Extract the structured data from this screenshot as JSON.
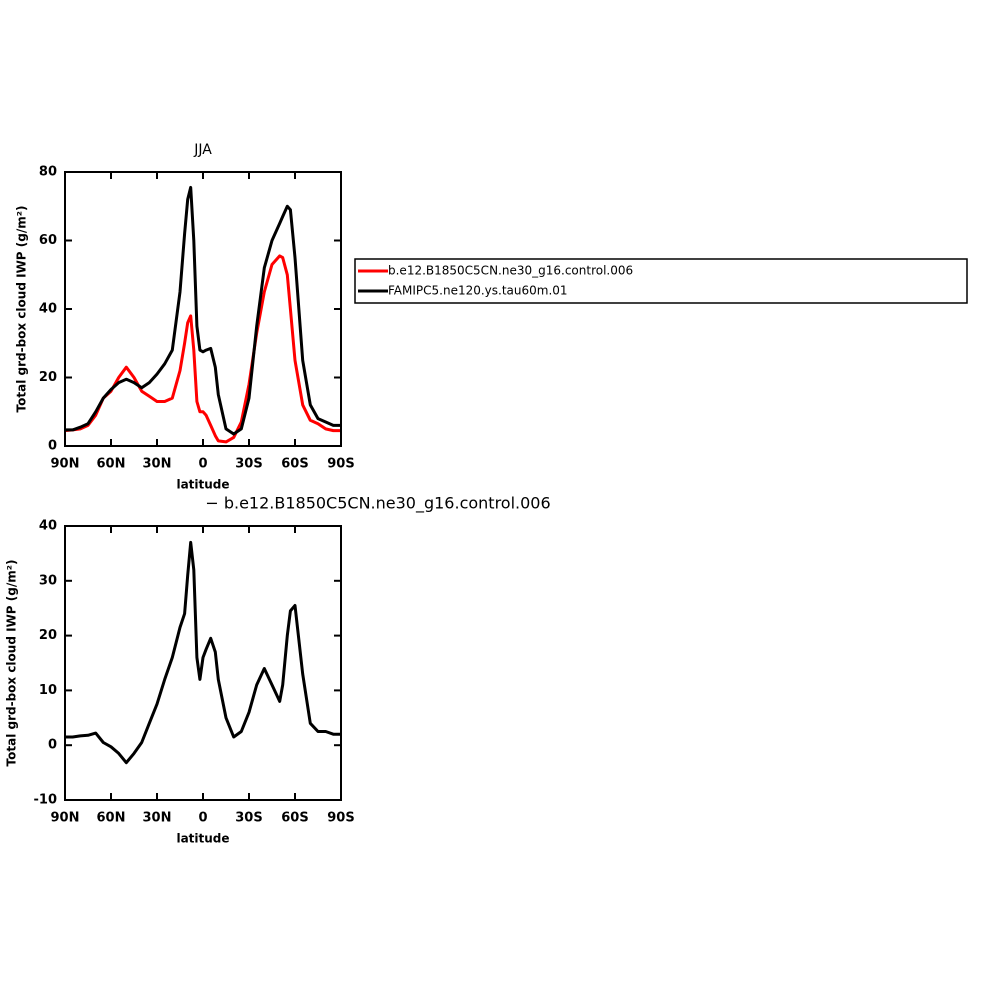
{
  "chart_data": [
    {
      "type": "line",
      "title": "JJA",
      "xlabel": "latitude",
      "ylabel": "Total grd-box cloud IWP (g/m²)",
      "x": [
        90,
        85,
        80,
        75,
        70,
        65,
        60,
        55,
        50,
        45,
        40,
        35,
        30,
        25,
        20,
        15,
        12,
        10,
        8,
        6,
        4,
        2,
        0,
        -2,
        -5,
        -8,
        -10,
        -15,
        -20,
        -25,
        -30,
        -35,
        -40,
        -45,
        -50,
        -52,
        -55,
        -57,
        -60,
        -65,
        -70,
        -75,
        -80,
        -85,
        -90
      ],
      "xlim": [
        90,
        -90
      ],
      "xticks": [
        {
          "value": 90,
          "label": "90N"
        },
        {
          "value": 60,
          "label": "60N"
        },
        {
          "value": 30,
          "label": "30N"
        },
        0,
        {
          "value": -30,
          "label": "30S"
        },
        {
          "value": -60,
          "label": "60S"
        },
        {
          "value": -90,
          "label": "90S"
        }
      ],
      "ylim": [
        0,
        80
      ],
      "yticks": [
        0,
        20,
        40,
        60,
        80
      ],
      "legend": "right",
      "series": [
        {
          "name": "b.e12.B1850C5CN.ne30_g16.control.006",
          "color": "#ff0000",
          "values": [
            4.5,
            4.7,
            5,
            6,
            9,
            14,
            16,
            20,
            23,
            20,
            16,
            14.5,
            13,
            13,
            14,
            22,
            30,
            36,
            38,
            28,
            13,
            10,
            10,
            9,
            6,
            3,
            1.5,
            1.2,
            2.5,
            7,
            18,
            33,
            45,
            53,
            55.5,
            55,
            50,
            40,
            25,
            12,
            7.5,
            6.5,
            5,
            4.5,
            4.5
          ]
        },
        {
          "name": "FAMIPC5.ne120.ys.tau60m.01",
          "color": "#000000",
          "values": [
            4.7,
            4.7,
            5.5,
            6.5,
            10,
            14,
            16.5,
            18.5,
            19.5,
            18.5,
            17,
            18.5,
            21,
            24,
            28,
            45,
            62,
            72,
            75.5,
            60,
            35,
            28,
            27.5,
            28,
            28.5,
            23,
            15,
            5,
            3.5,
            5,
            14,
            35,
            52,
            60,
            65,
            67,
            70,
            69,
            55,
            25,
            12,
            8,
            7,
            6,
            6
          ]
        }
      ]
    },
    {
      "type": "line",
      "title": "− b.e12.B1850C5CN.ne30_g16.control.006",
      "xlabel": "latitude",
      "ylabel": "Total grd-box cloud IWP (g/m²)",
      "x": [
        90,
        85,
        80,
        75,
        70,
        65,
        60,
        55,
        50,
        45,
        40,
        35,
        30,
        25,
        20,
        15,
        12,
        10,
        8,
        6,
        4,
        2,
        0,
        -2,
        -5,
        -8,
        -10,
        -15,
        -20,
        -25,
        -30,
        -35,
        -40,
        -45,
        -50,
        -52,
        -55,
        -57,
        -60,
        -65,
        -70,
        -75,
        -80,
        -85,
        -90
      ],
      "xlim": [
        90,
        -90
      ],
      "xticks": [
        {
          "value": 90,
          "label": "90N"
        },
        {
          "value": 60,
          "label": "60N"
        },
        {
          "value": 30,
          "label": "30N"
        },
        0,
        {
          "value": -30,
          "label": "30S"
        },
        {
          "value": -60,
          "label": "60S"
        },
        {
          "value": -90,
          "label": "90S"
        }
      ],
      "ylim": [
        -10,
        40
      ],
      "yticks": [
        -10,
        0,
        10,
        20,
        30,
        40
      ],
      "series": [
        {
          "color": "#000000",
          "values": [
            1.5,
            1.5,
            1.7,
            1.8,
            2.2,
            0.5,
            -0.3,
            -1.5,
            -3.2,
            -1.5,
            0.5,
            4,
            7.5,
            12,
            16,
            21.5,
            24,
            31,
            37,
            32,
            16,
            12,
            16,
            17.5,
            19.5,
            17,
            12,
            5,
            1.5,
            2.5,
            6,
            11,
            14,
            11,
            8,
            11,
            20,
            24.5,
            25.5,
            13,
            4,
            2.5,
            2.5,
            2,
            2
          ]
        }
      ]
    }
  ]
}
